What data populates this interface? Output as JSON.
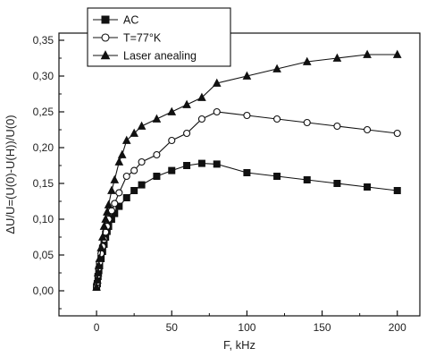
{
  "chart_data": {
    "type": "line",
    "xlabel": "F, kHz",
    "ylabel": "ΔU/U=(U(0)-U(H))/U(0)",
    "xlim": [
      -25,
      215
    ],
    "ylim": [
      -0.035,
      0.36
    ],
    "xticks": [
      0,
      50,
      100,
      150,
      200
    ],
    "yticks": [
      0.0,
      0.05,
      0.1,
      0.15,
      0.2,
      0.25,
      0.3,
      0.35
    ],
    "ytick_labels": [
      "0,00",
      "0,05",
      "0,10",
      "0,15",
      "0,20",
      "0,25",
      "0,30",
      "0,35"
    ],
    "xtick_labels": [
      "0",
      "50",
      "100",
      "150",
      "200"
    ],
    "grid": false,
    "legend_position": "top-left",
    "series": [
      {
        "name": "AC",
        "marker": "square",
        "x": [
          0,
          0.5,
          1,
          1.5,
          2,
          3,
          4,
          5,
          6,
          7,
          8,
          10,
          12,
          15,
          20,
          25,
          30,
          40,
          50,
          60,
          70,
          80,
          100,
          120,
          140,
          160,
          180,
          200
        ],
        "y": [
          0.005,
          0.01,
          0.02,
          0.028,
          0.035,
          0.045,
          0.055,
          0.065,
          0.075,
          0.083,
          0.09,
          0.1,
          0.108,
          0.118,
          0.13,
          0.14,
          0.148,
          0.16,
          0.168,
          0.175,
          0.178,
          0.177,
          0.165,
          0.16,
          0.155,
          0.15,
          0.145,
          0.14
        ]
      },
      {
        "name": "T=77°K",
        "marker": "circle-open",
        "x": [
          0,
          0.5,
          1,
          1.5,
          2,
          3,
          4,
          5,
          6,
          7,
          8,
          10,
          12,
          15,
          20,
          25,
          30,
          40,
          50,
          60,
          70,
          80,
          100,
          120,
          140,
          160,
          180,
          200
        ],
        "y": [
          0.005,
          0.012,
          0.022,
          0.032,
          0.04,
          0.052,
          0.062,
          0.072,
          0.082,
          0.09,
          0.1,
          0.112,
          0.122,
          0.137,
          0.16,
          0.168,
          0.18,
          0.19,
          0.21,
          0.22,
          0.24,
          0.25,
          0.245,
          0.24,
          0.235,
          0.23,
          0.225,
          0.22
        ]
      },
      {
        "name": "Laser anealing",
        "marker": "triangle",
        "x": [
          0,
          0.5,
          1,
          1.5,
          2,
          3,
          4,
          5,
          6,
          7,
          8,
          10,
          12,
          15,
          17,
          20,
          25,
          30,
          40,
          50,
          60,
          70,
          80,
          100,
          120,
          140,
          160,
          180,
          200
        ],
        "y": [
          0.005,
          0.015,
          0.025,
          0.035,
          0.045,
          0.06,
          0.075,
          0.09,
          0.1,
          0.11,
          0.12,
          0.14,
          0.155,
          0.18,
          0.19,
          0.21,
          0.22,
          0.23,
          0.24,
          0.25,
          0.26,
          0.27,
          0.29,
          0.3,
          0.31,
          0.32,
          0.325,
          0.33,
          0.33
        ]
      }
    ]
  }
}
